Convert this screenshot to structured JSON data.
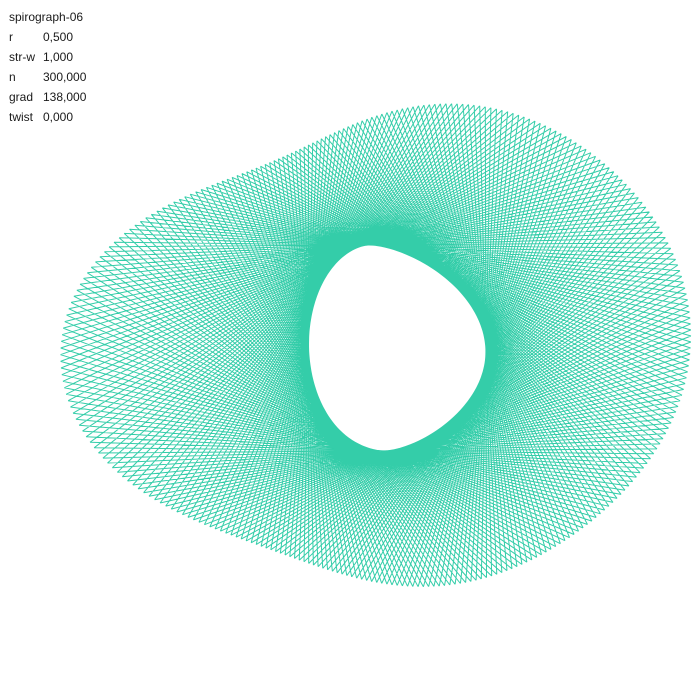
{
  "title": "spirograph-06",
  "params": [
    {
      "name": "r",
      "value": "0,500"
    },
    {
      "name": "str-w",
      "value": "1,000"
    },
    {
      "name": "n",
      "value": "300,000"
    },
    {
      "name": "grad",
      "value": "138,000"
    },
    {
      "name": "twist",
      "value": "0,000"
    }
  ],
  "spirograph": {
    "stroke_color": "#1ec8a0",
    "stroke_width": 1,
    "r": 0.5,
    "n": 300,
    "grad": 138,
    "twist": 0
  }
}
